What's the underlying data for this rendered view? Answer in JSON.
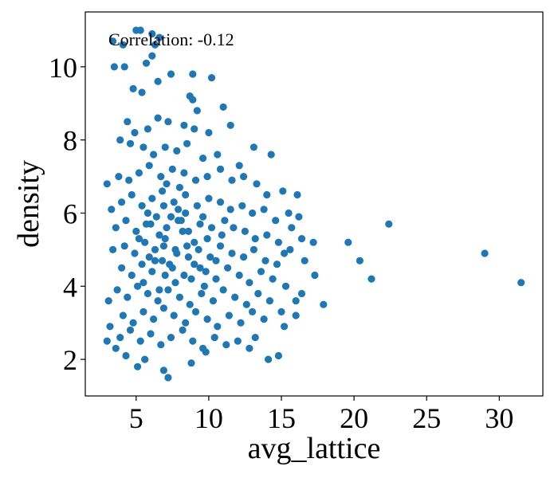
{
  "chart_data": {
    "type": "scatter",
    "title": "",
    "xlabel": "avg_lattice",
    "ylabel": "density",
    "annotation": "Correlation: -0.12",
    "xlim": [
      1.5,
      33.0
    ],
    "ylim": [
      1.0,
      11.5
    ],
    "x_ticks": [
      5,
      10,
      15,
      20,
      25,
      30
    ],
    "y_ticks": [
      2,
      4,
      6,
      8,
      10
    ],
    "marker_color": "#1f77b4",
    "grid": false,
    "legend": "none",
    "points": [
      [
        3.4,
        10.7
      ],
      [
        4.1,
        10.6
      ],
      [
        5.0,
        11.0
      ],
      [
        5.3,
        11.0
      ],
      [
        6.1,
        10.9
      ],
      [
        6.3,
        10.6
      ],
      [
        6.6,
        10.8
      ],
      [
        3.5,
        10.0
      ],
      [
        4.2,
        10.0
      ],
      [
        5.7,
        10.1
      ],
      [
        6.1,
        10.3
      ],
      [
        7.4,
        9.8
      ],
      [
        8.9,
        9.8
      ],
      [
        10.2,
        9.7
      ],
      [
        4.8,
        9.4
      ],
      [
        5.4,
        9.3
      ],
      [
        6.5,
        9.6
      ],
      [
        8.7,
        9.2
      ],
      [
        8.9,
        9.1
      ],
      [
        9.2,
        8.8
      ],
      [
        4.4,
        8.5
      ],
      [
        4.9,
        8.2
      ],
      [
        5.8,
        8.3
      ],
      [
        6.5,
        8.6
      ],
      [
        7.2,
        8.5
      ],
      [
        8.3,
        8.4
      ],
      [
        9.0,
        8.3
      ],
      [
        10.0,
        8.2
      ],
      [
        11.0,
        8.9
      ],
      [
        11.5,
        8.4
      ],
      [
        3.9,
        8.0
      ],
      [
        4.6,
        7.9
      ],
      [
        5.5,
        7.8
      ],
      [
        6.2,
        7.6
      ],
      [
        7.0,
        7.8
      ],
      [
        7.8,
        7.7
      ],
      [
        8.5,
        7.9
      ],
      [
        9.6,
        7.5
      ],
      [
        10.6,
        7.6
      ],
      [
        12.1,
        7.3
      ],
      [
        13.1,
        7.8
      ],
      [
        14.3,
        7.6
      ],
      [
        3.0,
        6.8
      ],
      [
        3.8,
        7.0
      ],
      [
        4.5,
        6.9
      ],
      [
        5.2,
        7.1
      ],
      [
        5.9,
        7.3
      ],
      [
        6.7,
        7.0
      ],
      [
        7.5,
        7.2
      ],
      [
        8.3,
        7.1
      ],
      [
        9.1,
        6.9
      ],
      [
        9.9,
        7.0
      ],
      [
        10.8,
        7.2
      ],
      [
        11.6,
        6.9
      ],
      [
        12.4,
        7.0
      ],
      [
        13.3,
        6.8
      ],
      [
        14.0,
        6.5
      ],
      [
        15.1,
        6.6
      ],
      [
        16.1,
        6.5
      ],
      [
        15.5,
        6.0
      ],
      [
        16.2,
        5.9
      ],
      [
        3.3,
        6.1
      ],
      [
        4.0,
        6.3
      ],
      [
        4.7,
        6.5
      ],
      [
        5.4,
        6.2
      ],
      [
        6.1,
        6.4
      ],
      [
        6.8,
        6.6
      ],
      [
        7.6,
        6.3
      ],
      [
        8.4,
        6.5
      ],
      [
        9.2,
        6.2
      ],
      [
        10.0,
        6.4
      ],
      [
        10.8,
        6.3
      ],
      [
        11.5,
        6.1
      ],
      [
        12.3,
        6.2
      ],
      [
        13.0,
        6.0
      ],
      [
        13.8,
        6.1
      ],
      [
        14.6,
        5.8
      ],
      [
        15.7,
        5.6
      ],
      [
        16.4,
        5.3
      ],
      [
        17.2,
        5.2
      ],
      [
        3.6,
        5.6
      ],
      [
        4.3,
        5.8
      ],
      [
        5.0,
        5.5
      ],
      [
        5.7,
        5.7
      ],
      [
        6.4,
        5.9
      ],
      [
        7.1,
        5.6
      ],
      [
        7.9,
        5.8
      ],
      [
        8.6,
        5.5
      ],
      [
        9.4,
        5.7
      ],
      [
        10.2,
        5.6
      ],
      [
        10.9,
        5.4
      ],
      [
        11.7,
        5.6
      ],
      [
        12.5,
        5.5
      ],
      [
        13.2,
        5.3
      ],
      [
        14.0,
        5.4
      ],
      [
        14.8,
        5.2
      ],
      [
        15.6,
        5.0
      ],
      [
        3.4,
        5.0
      ],
      [
        4.2,
        5.1
      ],
      [
        4.9,
        4.9
      ],
      [
        5.6,
        5.2
      ],
      [
        6.3,
        5.0
      ],
      [
        7.0,
        5.3
      ],
      [
        7.8,
        4.9
      ],
      [
        8.5,
        5.1
      ],
      [
        9.3,
        5.0
      ],
      [
        10.1,
        4.8
      ],
      [
        10.8,
        5.1
      ],
      [
        11.6,
        4.9
      ],
      [
        12.4,
        4.8
      ],
      [
        13.1,
        5.0
      ],
      [
        13.9,
        4.7
      ],
      [
        14.7,
        4.6
      ],
      [
        16.6,
        4.7
      ],
      [
        4.0,
        4.5
      ],
      [
        4.7,
        4.3
      ],
      [
        5.4,
        4.6
      ],
      [
        6.1,
        4.4
      ],
      [
        6.8,
        4.7
      ],
      [
        7.5,
        4.5
      ],
      [
        8.3,
        4.3
      ],
      [
        9.0,
        4.6
      ],
      [
        9.8,
        4.4
      ],
      [
        10.5,
        4.2
      ],
      [
        11.3,
        4.5
      ],
      [
        12.1,
        4.3
      ],
      [
        12.8,
        4.1
      ],
      [
        13.6,
        4.4
      ],
      [
        14.4,
        4.2
      ],
      [
        15.3,
        4.0
      ],
      [
        16.4,
        3.8
      ],
      [
        17.3,
        4.3
      ],
      [
        3.7,
        3.9
      ],
      [
        4.4,
        3.7
      ],
      [
        5.1,
        4.0
      ],
      [
        5.8,
        3.8
      ],
      [
        6.5,
        3.6
      ],
      [
        7.2,
        3.9
      ],
      [
        8.0,
        3.7
      ],
      [
        8.7,
        3.5
      ],
      [
        9.5,
        3.8
      ],
      [
        10.3,
        3.6
      ],
      [
        11.0,
        3.9
      ],
      [
        11.8,
        3.7
      ],
      [
        12.6,
        3.5
      ],
      [
        13.4,
        3.8
      ],
      [
        14.2,
        3.6
      ],
      [
        15.0,
        3.3
      ],
      [
        16.0,
        3.6
      ],
      [
        3.1,
        3.6
      ],
      [
        4.1,
        3.2
      ],
      [
        4.8,
        3.0
      ],
      [
        5.5,
        3.3
      ],
      [
        6.2,
        3.1
      ],
      [
        6.9,
        3.4
      ],
      [
        7.6,
        3.2
      ],
      [
        8.4,
        3.0
      ],
      [
        9.1,
        3.3
      ],
      [
        9.9,
        3.1
      ],
      [
        10.6,
        2.9
      ],
      [
        11.4,
        3.2
      ],
      [
        12.2,
        3.0
      ],
      [
        13.0,
        3.3
      ],
      [
        13.8,
        3.1
      ],
      [
        15.2,
        2.9
      ],
      [
        16.0,
        3.2
      ],
      [
        3.2,
        2.9
      ],
      [
        3.9,
        2.6
      ],
      [
        4.6,
        2.8
      ],
      [
        5.3,
        2.5
      ],
      [
        6.0,
        2.7
      ],
      [
        6.7,
        2.4
      ],
      [
        7.4,
        2.6
      ],
      [
        8.2,
        2.8
      ],
      [
        8.9,
        2.5
      ],
      [
        9.6,
        2.3
      ],
      [
        10.4,
        2.6
      ],
      [
        11.2,
        2.4
      ],
      [
        12.0,
        2.5
      ],
      [
        12.8,
        2.3
      ],
      [
        13.2,
        2.6
      ],
      [
        3.0,
        2.5
      ],
      [
        3.6,
        2.3
      ],
      [
        4.3,
        2.1
      ],
      [
        5.1,
        1.8
      ],
      [
        5.6,
        2.0
      ],
      [
        6.9,
        1.7
      ],
      [
        7.2,
        1.5
      ],
      [
        8.8,
        1.9
      ],
      [
        9.8,
        2.2
      ],
      [
        14.1,
        2.0
      ],
      [
        14.8,
        2.1
      ],
      [
        19.6,
        5.2
      ],
      [
        20.4,
        4.7
      ],
      [
        21.2,
        4.2
      ],
      [
        22.4,
        5.7
      ],
      [
        29.0,
        4.9
      ],
      [
        31.5,
        4.1
      ],
      [
        17.9,
        3.5
      ],
      [
        15.2,
        4.9
      ],
      [
        5.2,
        5.3
      ],
      [
        5.9,
        4.8
      ],
      [
        6.6,
        5.4
      ],
      [
        7.3,
        4.6
      ],
      [
        7.7,
        5.0
      ],
      [
        8.1,
        5.8
      ],
      [
        8.8,
        4.2
      ],
      [
        9.0,
        5.2
      ],
      [
        7.9,
        6.1
      ],
      [
        6.9,
        5.1
      ],
      [
        7.4,
        5.9
      ],
      [
        8.6,
        4.8
      ],
      [
        9.6,
        5.9
      ],
      [
        6.3,
        4.7
      ],
      [
        5.8,
        6.0
      ],
      [
        7.0,
        4.3
      ],
      [
        8.2,
        5.5
      ],
      [
        9.4,
        4.5
      ],
      [
        6.6,
        3.9
      ],
      [
        7.7,
        4.1
      ],
      [
        8.0,
        6.7
      ],
      [
        6.9,
        6.2
      ],
      [
        9.9,
        5.3
      ],
      [
        10.5,
        4.7
      ],
      [
        11.1,
        5.8
      ],
      [
        5.5,
        4.1
      ],
      [
        6.0,
        5.7
      ],
      [
        7.1,
        6.8
      ],
      [
        8.4,
        6.0
      ],
      [
        9.7,
        4.0
      ]
    ]
  }
}
